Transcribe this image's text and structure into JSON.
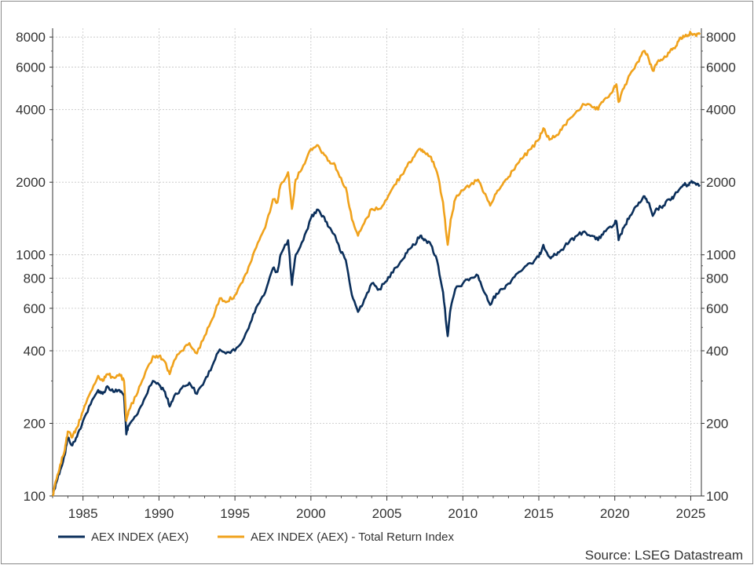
{
  "chart_data": {
    "type": "line",
    "title": "",
    "xlabel": "",
    "ylabel": "",
    "y_scale": "log",
    "xlim": [
      1983.0,
      2025.7
    ],
    "ylim": [
      100,
      8700
    ],
    "grid": true,
    "legend_position": "bottom-left",
    "x_ticks": [
      1985,
      1990,
      1995,
      2000,
      2005,
      2010,
      2015,
      2020,
      2025
    ],
    "x_tick_labels": [
      "1985",
      "1990",
      "1995",
      "2000",
      "2005",
      "2010",
      "2015",
      "2020",
      "2025"
    ],
    "y_ticks": [
      100,
      200,
      400,
      600,
      800,
      1000,
      2000,
      4000,
      6000,
      8000
    ],
    "y_tick_labels": [
      "100",
      "200",
      "400",
      "600",
      "800",
      "1000",
      "2000",
      "4000",
      "6000",
      "8000"
    ],
    "source": "Source: LSEG Datastream",
    "series": [
      {
        "name": "AEX INDEX (AEX)",
        "color": "#0b2f5b",
        "x": [
          1983.0,
          1983.2,
          1983.5,
          1983.8,
          1984.0,
          1984.3,
          1984.6,
          1985.0,
          1985.5,
          1986.0,
          1986.3,
          1986.6,
          1987.0,
          1987.4,
          1987.7,
          1987.85,
          1988.0,
          1988.5,
          1989.0,
          1989.6,
          1990.0,
          1990.4,
          1990.7,
          1991.0,
          1991.5,
          1992.0,
          1992.5,
          1993.0,
          1993.5,
          1994.0,
          1994.5,
          1995.0,
          1995.5,
          1996.0,
          1996.5,
          1997.0,
          1997.5,
          1997.8,
          1998.0,
          1998.5,
          1998.75,
          1999.0,
          1999.5,
          2000.0,
          2000.4,
          2000.8,
          2001.2,
          2001.6,
          2001.9,
          2002.3,
          2002.7,
          2003.1,
          2003.5,
          2004.0,
          2004.5,
          2005.0,
          2005.5,
          2006.0,
          2006.4,
          2006.8,
          2007.2,
          2007.5,
          2007.9,
          2008.3,
          2008.7,
          2009.0,
          2009.2,
          2009.5,
          2010.0,
          2010.5,
          2011.0,
          2011.4,
          2011.8,
          2012.2,
          2012.6,
          2013.0,
          2013.5,
          2014.0,
          2014.5,
          2015.0,
          2015.3,
          2015.7,
          2016.1,
          2016.5,
          2017.0,
          2017.5,
          2018.0,
          2018.5,
          2018.9,
          2019.3,
          2019.8,
          2020.1,
          2020.25,
          2020.6,
          2021.0,
          2021.5,
          2021.9,
          2022.2,
          2022.5,
          2022.8,
          2023.2,
          2023.6,
          2023.9,
          2024.2,
          2024.5,
          2024.8,
          2025.0,
          2025.3,
          2025.6
        ],
        "values": [
          100,
          112,
          128,
          148,
          175,
          162,
          176,
          205,
          240,
          275,
          265,
          285,
          270,
          275,
          260,
          180,
          195,
          215,
          250,
          300,
          290,
          270,
          235,
          260,
          280,
          295,
          265,
          300,
          345,
          405,
          395,
          400,
          440,
          520,
          620,
          700,
          880,
          850,
          1000,
          1150,
          750,
          1000,
          1150,
          1420,
          1540,
          1450,
          1300,
          1200,
          1050,
          950,
          680,
          580,
          650,
          760,
          720,
          780,
          880,
          950,
          1050,
          1100,
          1200,
          1160,
          1100,
          950,
          700,
          460,
          600,
          720,
          760,
          800,
          820,
          700,
          620,
          690,
          720,
          760,
          830,
          880,
          920,
          980,
          1100,
          980,
          1000,
          1050,
          1130,
          1200,
          1250,
          1200,
          1150,
          1250,
          1300,
          1380,
          1150,
          1300,
          1450,
          1600,
          1750,
          1650,
          1450,
          1550,
          1600,
          1700,
          1750,
          1850,
          1950,
          1950,
          2000,
          1980,
          1950
        ]
      },
      {
        "name": "AEX INDEX (AEX) - Total Return Index",
        "color": "#f0a21c",
        "x": [
          1983.0,
          1983.2,
          1983.5,
          1983.8,
          1984.0,
          1984.3,
          1984.6,
          1985.0,
          1985.5,
          1986.0,
          1986.3,
          1986.6,
          1987.0,
          1987.4,
          1987.7,
          1987.85,
          1988.0,
          1988.5,
          1989.0,
          1989.6,
          1990.0,
          1990.4,
          1990.7,
          1991.0,
          1991.5,
          1992.0,
          1992.5,
          1993.0,
          1993.5,
          1994.0,
          1994.5,
          1995.0,
          1995.5,
          1996.0,
          1996.5,
          1997.0,
          1997.5,
          1997.8,
          1998.0,
          1998.5,
          1998.75,
          1999.0,
          1999.5,
          2000.0,
          2000.4,
          2000.8,
          2001.2,
          2001.6,
          2001.9,
          2002.3,
          2002.7,
          2003.1,
          2003.5,
          2004.0,
          2004.5,
          2005.0,
          2005.5,
          2006.0,
          2006.4,
          2006.8,
          2007.2,
          2007.5,
          2007.9,
          2008.3,
          2008.7,
          2009.0,
          2009.2,
          2009.5,
          2010.0,
          2010.5,
          2011.0,
          2011.4,
          2011.8,
          2012.2,
          2012.6,
          2013.0,
          2013.5,
          2014.0,
          2014.5,
          2015.0,
          2015.3,
          2015.7,
          2016.1,
          2016.5,
          2017.0,
          2017.5,
          2018.0,
          2018.5,
          2018.9,
          2019.3,
          2019.8,
          2020.1,
          2020.25,
          2020.6,
          2021.0,
          2021.5,
          2021.9,
          2022.2,
          2022.5,
          2022.8,
          2023.2,
          2023.6,
          2023.9,
          2024.2,
          2024.5,
          2024.8,
          2025.0,
          2025.3,
          2025.6
        ],
        "values": [
          100,
          115,
          135,
          155,
          185,
          175,
          192,
          225,
          270,
          315,
          300,
          320,
          310,
          320,
          300,
          205,
          225,
          260,
          310,
          380,
          380,
          360,
          320,
          365,
          400,
          430,
          390,
          460,
          540,
          660,
          640,
          680,
          770,
          920,
          1120,
          1300,
          1700,
          1650,
          1950,
          2200,
          1550,
          2050,
          2350,
          2750,
          2850,
          2650,
          2450,
          2350,
          2100,
          1900,
          1400,
          1200,
          1350,
          1550,
          1550,
          1700,
          1950,
          2150,
          2400,
          2550,
          2750,
          2650,
          2550,
          2200,
          1650,
          1100,
          1400,
          1700,
          1850,
          1950,
          2050,
          1800,
          1600,
          1800,
          1950,
          2100,
          2350,
          2550,
          2750,
          3000,
          3350,
          3000,
          3100,
          3300,
          3650,
          3950,
          4200,
          4100,
          4000,
          4400,
          4700,
          5100,
          4300,
          4900,
          5600,
          6300,
          7000,
          6600,
          5800,
          6300,
          6500,
          6900,
          7200,
          7700,
          8100,
          8100,
          8300,
          8200,
          8200
        ]
      }
    ]
  }
}
